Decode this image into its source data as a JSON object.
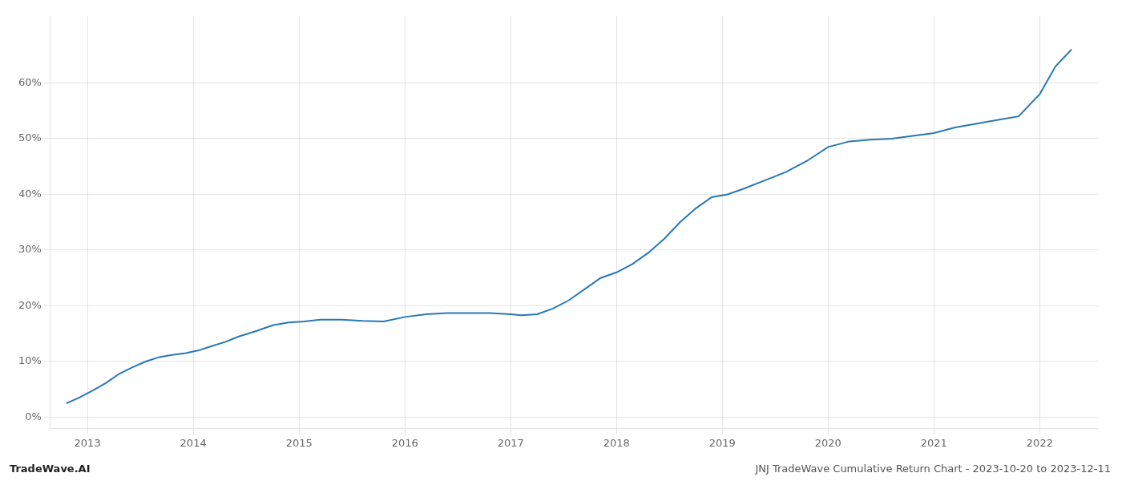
{
  "chart_data": {
    "type": "line",
    "title": "JNJ TradeWave Cumulative Return Chart - 2023-10-20 to 2023-12-11",
    "annotations": [
      "TradeWave.AI"
    ],
    "x": [
      2012.8,
      2012.92,
      2013.05,
      2013.18,
      2013.3,
      2013.43,
      2013.55,
      2013.68,
      2013.8,
      2013.93,
      2014.05,
      2014.18,
      2014.3,
      2014.43,
      2014.6,
      2014.75,
      2014.9,
      2015.05,
      2015.2,
      2015.4,
      2015.6,
      2015.8,
      2016.0,
      2016.2,
      2016.4,
      2016.6,
      2016.8,
      2017.0,
      2017.1,
      2017.25,
      2017.4,
      2017.55,
      2017.7,
      2017.85,
      2018.0,
      2018.15,
      2018.3,
      2018.45,
      2018.6,
      2018.75,
      2018.9,
      2019.05,
      2019.2,
      2019.4,
      2019.6,
      2019.8,
      2020.0,
      2020.2,
      2020.4,
      2020.6,
      2020.8,
      2021.0,
      2021.1,
      2021.2,
      2021.35,
      2021.5,
      2021.65,
      2021.8,
      2022.0,
      2022.15,
      2022.3
    ],
    "values": [
      2.5,
      3.5,
      4.8,
      6.2,
      7.8,
      9.0,
      10.0,
      10.8,
      11.2,
      11.5,
      12.0,
      12.8,
      13.5,
      14.5,
      15.5,
      16.5,
      17.0,
      17.2,
      17.5,
      17.5,
      17.3,
      17.2,
      18.0,
      18.5,
      18.7,
      18.7,
      18.7,
      18.5,
      18.3,
      18.5,
      19.5,
      21.0,
      23.0,
      25.0,
      26.0,
      27.5,
      29.5,
      32.0,
      35.0,
      37.5,
      39.5,
      40.0,
      41.0,
      42.5,
      44.0,
      46.0,
      48.5,
      49.5,
      49.8,
      50.0,
      50.5,
      51.0,
      51.5,
      52.0,
      52.5,
      53.0,
      53.5,
      54.0,
      58.0,
      63.0,
      66.0
    ],
    "color": "#2878b5",
    "xlim": [
      2012.65,
      2022.55
    ],
    "xticks": [
      2013,
      2014,
      2015,
      2016,
      2017,
      2018,
      2019,
      2020,
      2021,
      2022
    ],
    "ylim": [
      -2,
      72
    ],
    "yticks": [
      {
        "value": 0,
        "label": "0%"
      },
      {
        "value": 10,
        "label": "10%"
      },
      {
        "value": 20,
        "label": "20%"
      },
      {
        "value": 30,
        "label": "30%"
      },
      {
        "value": 40,
        "label": "40%"
      },
      {
        "value": 50,
        "label": "50%"
      },
      {
        "value": 60,
        "label": "60%"
      }
    ],
    "grid": true
  }
}
